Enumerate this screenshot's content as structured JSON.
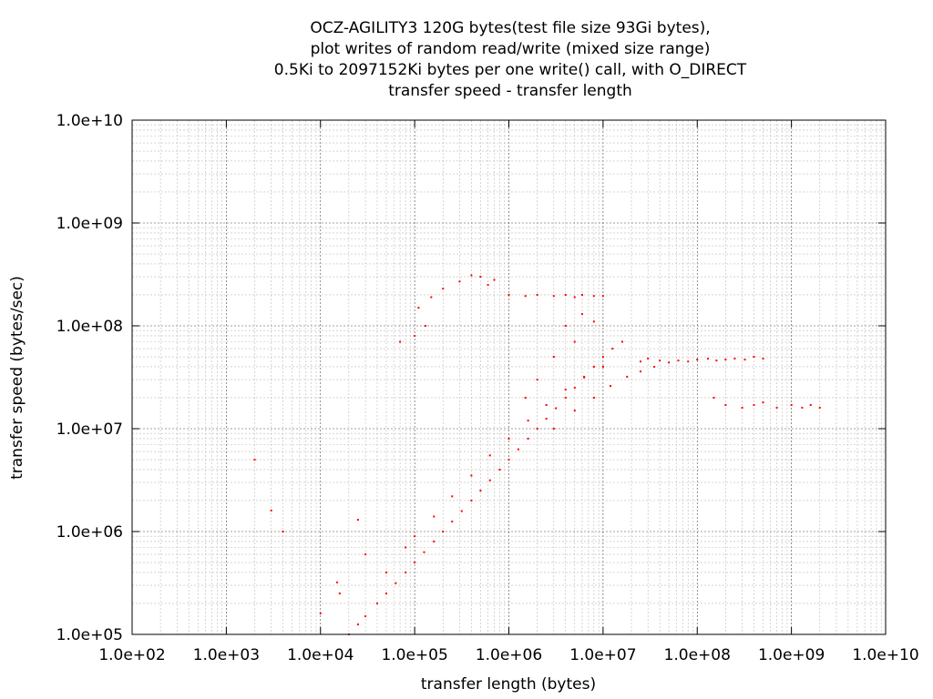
{
  "chart_data": {
    "type": "scatter",
    "title": [
      "OCZ-AGILITY3 120G bytes(test file size 93Gi bytes),",
      "plot writes of random read/write (mixed size range)",
      "0.5Ki to 2097152Ki bytes per one write() call, with O_DIRECT",
      "transfer speed - transfer length"
    ],
    "xlabel": "transfer length (bytes)",
    "ylabel": "transfer speed (bytes/sec)",
    "x_scale": "log",
    "y_scale": "log",
    "xlim": [
      100,
      10000000000
    ],
    "ylim": [
      100000,
      10000000000
    ],
    "x_ticks": [
      {
        "value": 100,
        "label": "1.0e+02"
      },
      {
        "value": 1000,
        "label": "1.0e+03"
      },
      {
        "value": 10000,
        "label": "1.0e+04"
      },
      {
        "value": 100000,
        "label": "1.0e+05"
      },
      {
        "value": 1000000,
        "label": "1.0e+06"
      },
      {
        "value": 10000000,
        "label": "1.0e+07"
      },
      {
        "value": 100000000,
        "label": "1.0e+08"
      },
      {
        "value": 1000000000,
        "label": "1.0e+09"
      },
      {
        "value": 10000000000,
        "label": "1.0e+10"
      }
    ],
    "y_ticks": [
      {
        "value": 100000,
        "label": "1.0e+05"
      },
      {
        "value": 1000000,
        "label": "1.0e+06"
      },
      {
        "value": 10000000,
        "label": "1.0e+07"
      },
      {
        "value": 100000000,
        "label": "1.0e+08"
      },
      {
        "value": 1000000000,
        "label": "1.0e+09"
      },
      {
        "value": 10000000000,
        "label": "1.0e+10"
      }
    ],
    "grid": true,
    "point_color": "#ff0000",
    "series": [
      {
        "points": [
          [
            20000,
            100000
          ],
          [
            25000,
            125000
          ],
          [
            30000,
            150000
          ],
          [
            40000,
            200000
          ],
          [
            50000,
            250000
          ],
          [
            63000,
            315000
          ],
          [
            80000,
            400000
          ],
          [
            100000,
            500000
          ],
          [
            126000,
            630000
          ],
          [
            160000,
            800000
          ],
          [
            200000,
            1000000
          ],
          [
            250000,
            1250000
          ],
          [
            316000,
            1580000
          ],
          [
            400000,
            2000000
          ],
          [
            500000,
            2500000
          ],
          [
            630000,
            3150000
          ],
          [
            800000,
            4000000
          ],
          [
            1000000,
            5000000
          ],
          [
            1260000,
            6300000
          ],
          [
            1600000,
            8000000
          ],
          [
            2000000,
            10000000
          ],
          [
            2500000,
            12500000
          ],
          [
            3160000,
            15800000
          ],
          [
            4000000,
            20000000
          ],
          [
            5000000,
            25000000
          ],
          [
            6300000,
            31500000
          ],
          [
            8000000,
            40000000
          ],
          [
            10000000,
            50000000
          ],
          [
            12600000,
            60000000
          ],
          [
            16000000,
            70000000
          ],
          [
            50000,
            400000
          ],
          [
            80000,
            700000
          ],
          [
            100000,
            900000
          ],
          [
            160000,
            1400000
          ],
          [
            250000,
            2200000
          ],
          [
            400000,
            3500000
          ],
          [
            630000,
            5500000
          ],
          [
            1000000,
            8000000
          ],
          [
            1600000,
            12000000
          ],
          [
            2500000,
            17000000
          ],
          [
            4000000,
            24000000
          ],
          [
            6300000,
            32000000
          ],
          [
            10000000,
            40000000
          ],
          [
            3000000,
            10000000
          ],
          [
            5000000,
            15000000
          ],
          [
            8000000,
            20000000
          ],
          [
            12000000,
            26000000
          ],
          [
            18000000,
            32000000
          ],
          [
            25000000,
            36000000
          ],
          [
            35000000,
            40000000
          ],
          [
            25000000,
            45000000
          ],
          [
            30000000,
            48000000
          ],
          [
            40000000,
            46000000
          ],
          [
            50000000,
            44000000
          ],
          [
            63000000,
            46000000
          ],
          [
            80000000,
            45000000
          ],
          [
            100000000,
            47000000
          ],
          [
            130000000,
            48000000
          ],
          [
            160000000,
            46000000
          ],
          [
            200000000,
            47000000
          ],
          [
            250000000,
            48000000
          ],
          [
            320000000,
            47000000
          ],
          [
            400000000,
            50000000
          ],
          [
            500000000,
            48000000
          ],
          [
            150000000,
            20000000
          ],
          [
            200000000,
            17000000
          ],
          [
            300000000,
            16000000
          ],
          [
            400000000,
            17000000
          ],
          [
            500000000,
            18000000
          ],
          [
            700000000,
            16000000
          ],
          [
            1000000000,
            17000000
          ],
          [
            1300000000,
            16000000
          ],
          [
            1600000000,
            17000000
          ],
          [
            2000000000,
            16000000
          ],
          [
            1000000,
            200000000
          ],
          [
            1500000,
            195000000
          ],
          [
            2000000,
            200000000
          ],
          [
            3000000,
            195000000
          ],
          [
            4000000,
            200000000
          ],
          [
            5000000,
            190000000
          ],
          [
            6000000,
            200000000
          ],
          [
            8000000,
            195000000
          ],
          [
            10000000,
            195000000
          ],
          [
            150000,
            190000000
          ],
          [
            200000,
            230000000
          ],
          [
            300000,
            270000000
          ],
          [
            400000,
            310000000
          ],
          [
            500000,
            300000000
          ],
          [
            600000,
            250000000
          ],
          [
            700000,
            280000000
          ],
          [
            110000,
            150000000
          ],
          [
            130000,
            100000000
          ],
          [
            100000,
            80000000
          ],
          [
            70000,
            70000000
          ],
          [
            2000,
            5000000
          ],
          [
            4000,
            1000000
          ],
          [
            3000,
            1600000
          ],
          [
            10000,
            160000
          ],
          [
            15000,
            320000
          ],
          [
            16000,
            250000
          ],
          [
            25000,
            1300000
          ],
          [
            30000,
            600000
          ],
          [
            1500000,
            20000000
          ],
          [
            2000000,
            30000000
          ],
          [
            3000000,
            50000000
          ],
          [
            4000000,
            100000000
          ],
          [
            5000000,
            70000000
          ],
          [
            6000000,
            130000000
          ],
          [
            8000000,
            110000000
          ]
        ]
      }
    ]
  }
}
